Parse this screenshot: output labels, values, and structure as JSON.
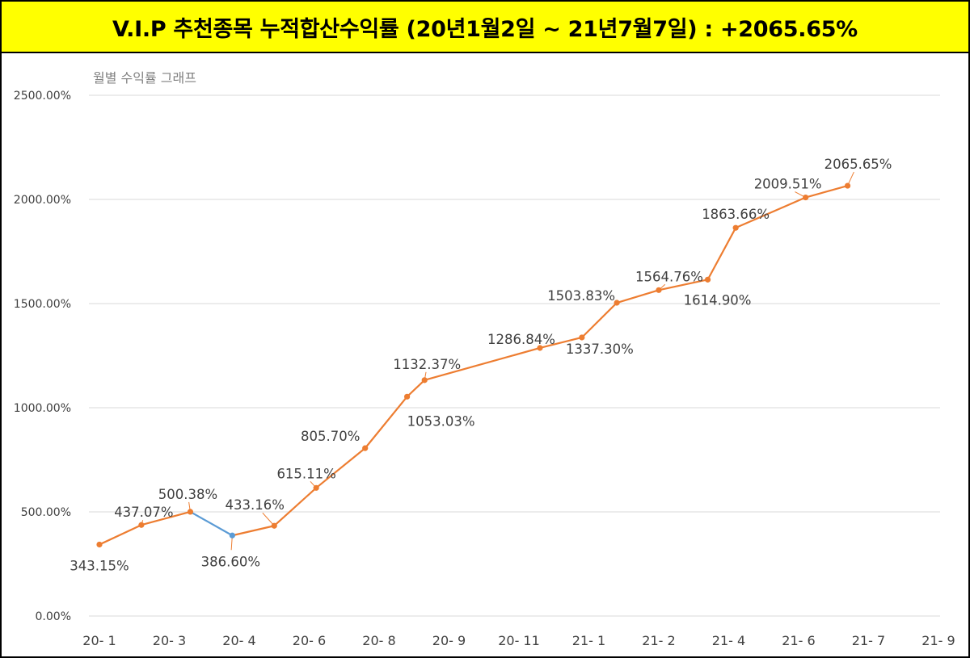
{
  "banner": {
    "title": "V.I.P 추천종목 누적합산수익률 (20년1월2일 ~ 21년7월7일) : +2065.65%"
  },
  "colors": {
    "banner_bg": "#ffff00",
    "line": "#ed7d31",
    "segment_highlight": "#5b9bd5",
    "grid": "#d9d9d9"
  },
  "chart_data": {
    "type": "line",
    "title": "월별 수익률 그래프",
    "ylim": [
      0,
      2500
    ],
    "y_ticks": [
      "0.00%",
      "500.00%",
      "1000.00%",
      "1500.00%",
      "2000.00%",
      "2500.00%"
    ],
    "x_ticks": [
      "20- 1",
      "20- 3",
      "20- 4",
      "20- 6",
      "20- 8",
      "20- 9",
      "20- 11",
      "21- 1",
      "21- 2",
      "21- 4",
      "21- 6",
      "21- 7",
      "21- 9"
    ],
    "grid": true,
    "legend": "none",
    "highlight_segment": [
      2,
      3
    ],
    "points": [
      {
        "x": 0.0,
        "y": 343.15,
        "label": "343.15%"
      },
      {
        "x": 0.6,
        "y": 437.07,
        "label": "437.07%"
      },
      {
        "x": 1.3,
        "y": 500.38,
        "label": "500.38%"
      },
      {
        "x": 1.9,
        "y": 386.6,
        "label": "386.60%"
      },
      {
        "x": 2.5,
        "y": 433.16,
        "label": "433.16%"
      },
      {
        "x": 3.1,
        "y": 615.11,
        "label": "615.11%"
      },
      {
        "x": 3.8,
        "y": 805.7,
        "label": "805.70%"
      },
      {
        "x": 4.4,
        "y": 1053.03,
        "label": "1053.03%"
      },
      {
        "x": 4.65,
        "y": 1132.37,
        "label": "1132.37%"
      },
      {
        "x": 6.3,
        "y": 1286.84,
        "label": "1286.84%"
      },
      {
        "x": 6.9,
        "y": 1337.3,
        "label": "1337.30%"
      },
      {
        "x": 7.4,
        "y": 1503.83,
        "label": "1503.83%"
      },
      {
        "x": 8.0,
        "y": 1564.76,
        "label": "1564.76%"
      },
      {
        "x": 8.7,
        "y": 1614.9,
        "label": "1614.90%"
      },
      {
        "x": 9.1,
        "y": 1863.66,
        "label": "1863.66%"
      },
      {
        "x": 10.1,
        "y": 2009.51,
        "label": "2009.51%"
      },
      {
        "x": 10.7,
        "y": 2065.65,
        "label": "2065.65%"
      }
    ]
  }
}
